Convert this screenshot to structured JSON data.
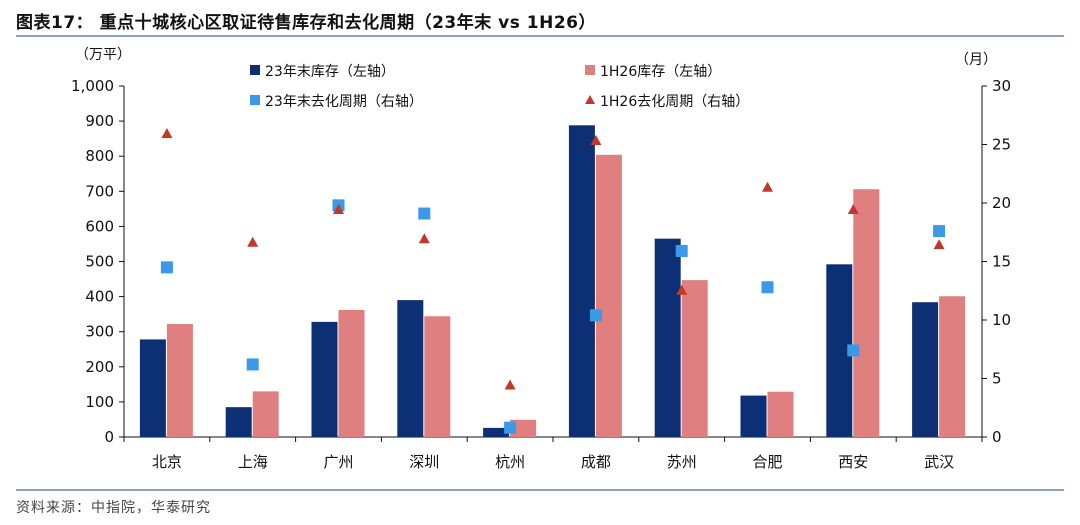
{
  "figure": {
    "title": "图表17：  重点十城核心区取证待售库存和去化周期（23年末 vs 1H26）",
    "source": "资料来源：中指院，华泰研究"
  },
  "chart_data": {
    "type": "bar",
    "categories": [
      "北京",
      "上海",
      "广州",
      "深圳",
      "杭州",
      "成都",
      "苏州",
      "合肥",
      "西安",
      "武汉"
    ],
    "left_axis": {
      "unit_label": "（万平）",
      "ylim": [
        0,
        1000
      ],
      "ticks": [
        "0",
        "100",
        "200",
        "300",
        "400",
        "500",
        "600",
        "700",
        "800",
        "900",
        "1,000"
      ]
    },
    "right_axis": {
      "unit_label": "（月）",
      "ylim": [
        0,
        30
      ],
      "ticks": [
        "0",
        "5",
        "10",
        "15",
        "20",
        "25",
        "30"
      ]
    },
    "series": [
      {
        "name": "23年末库存（左轴）",
        "kind": "bar",
        "axis": "left",
        "color": "#0d2f73",
        "values": [
          278,
          85,
          328,
          390,
          26,
          888,
          565,
          118,
          492,
          384
        ]
      },
      {
        "name": "1H26库存（左轴）",
        "kind": "bar",
        "axis": "left",
        "color": "#df7f7f",
        "values": [
          322,
          130,
          362,
          344,
          49,
          804,
          447,
          129,
          706,
          401
        ]
      },
      {
        "name": "23年末去化周期（右轴）",
        "kind": "marker",
        "marker": "square",
        "axis": "right",
        "color": "#3b9ae8",
        "values": [
          14.5,
          6.2,
          19.8,
          19.1,
          0.8,
          10.4,
          15.9,
          12.8,
          7.4,
          17.6
        ]
      },
      {
        "name": "1H26去化周期（右轴）",
        "kind": "marker",
        "marker": "triangle",
        "axis": "right",
        "color": "#c0392b",
        "values": [
          25.9,
          16.6,
          19.4,
          16.9,
          4.4,
          25.3,
          12.5,
          21.3,
          19.4,
          16.4
        ]
      }
    ],
    "grid": false,
    "legend": "top-inside"
  }
}
